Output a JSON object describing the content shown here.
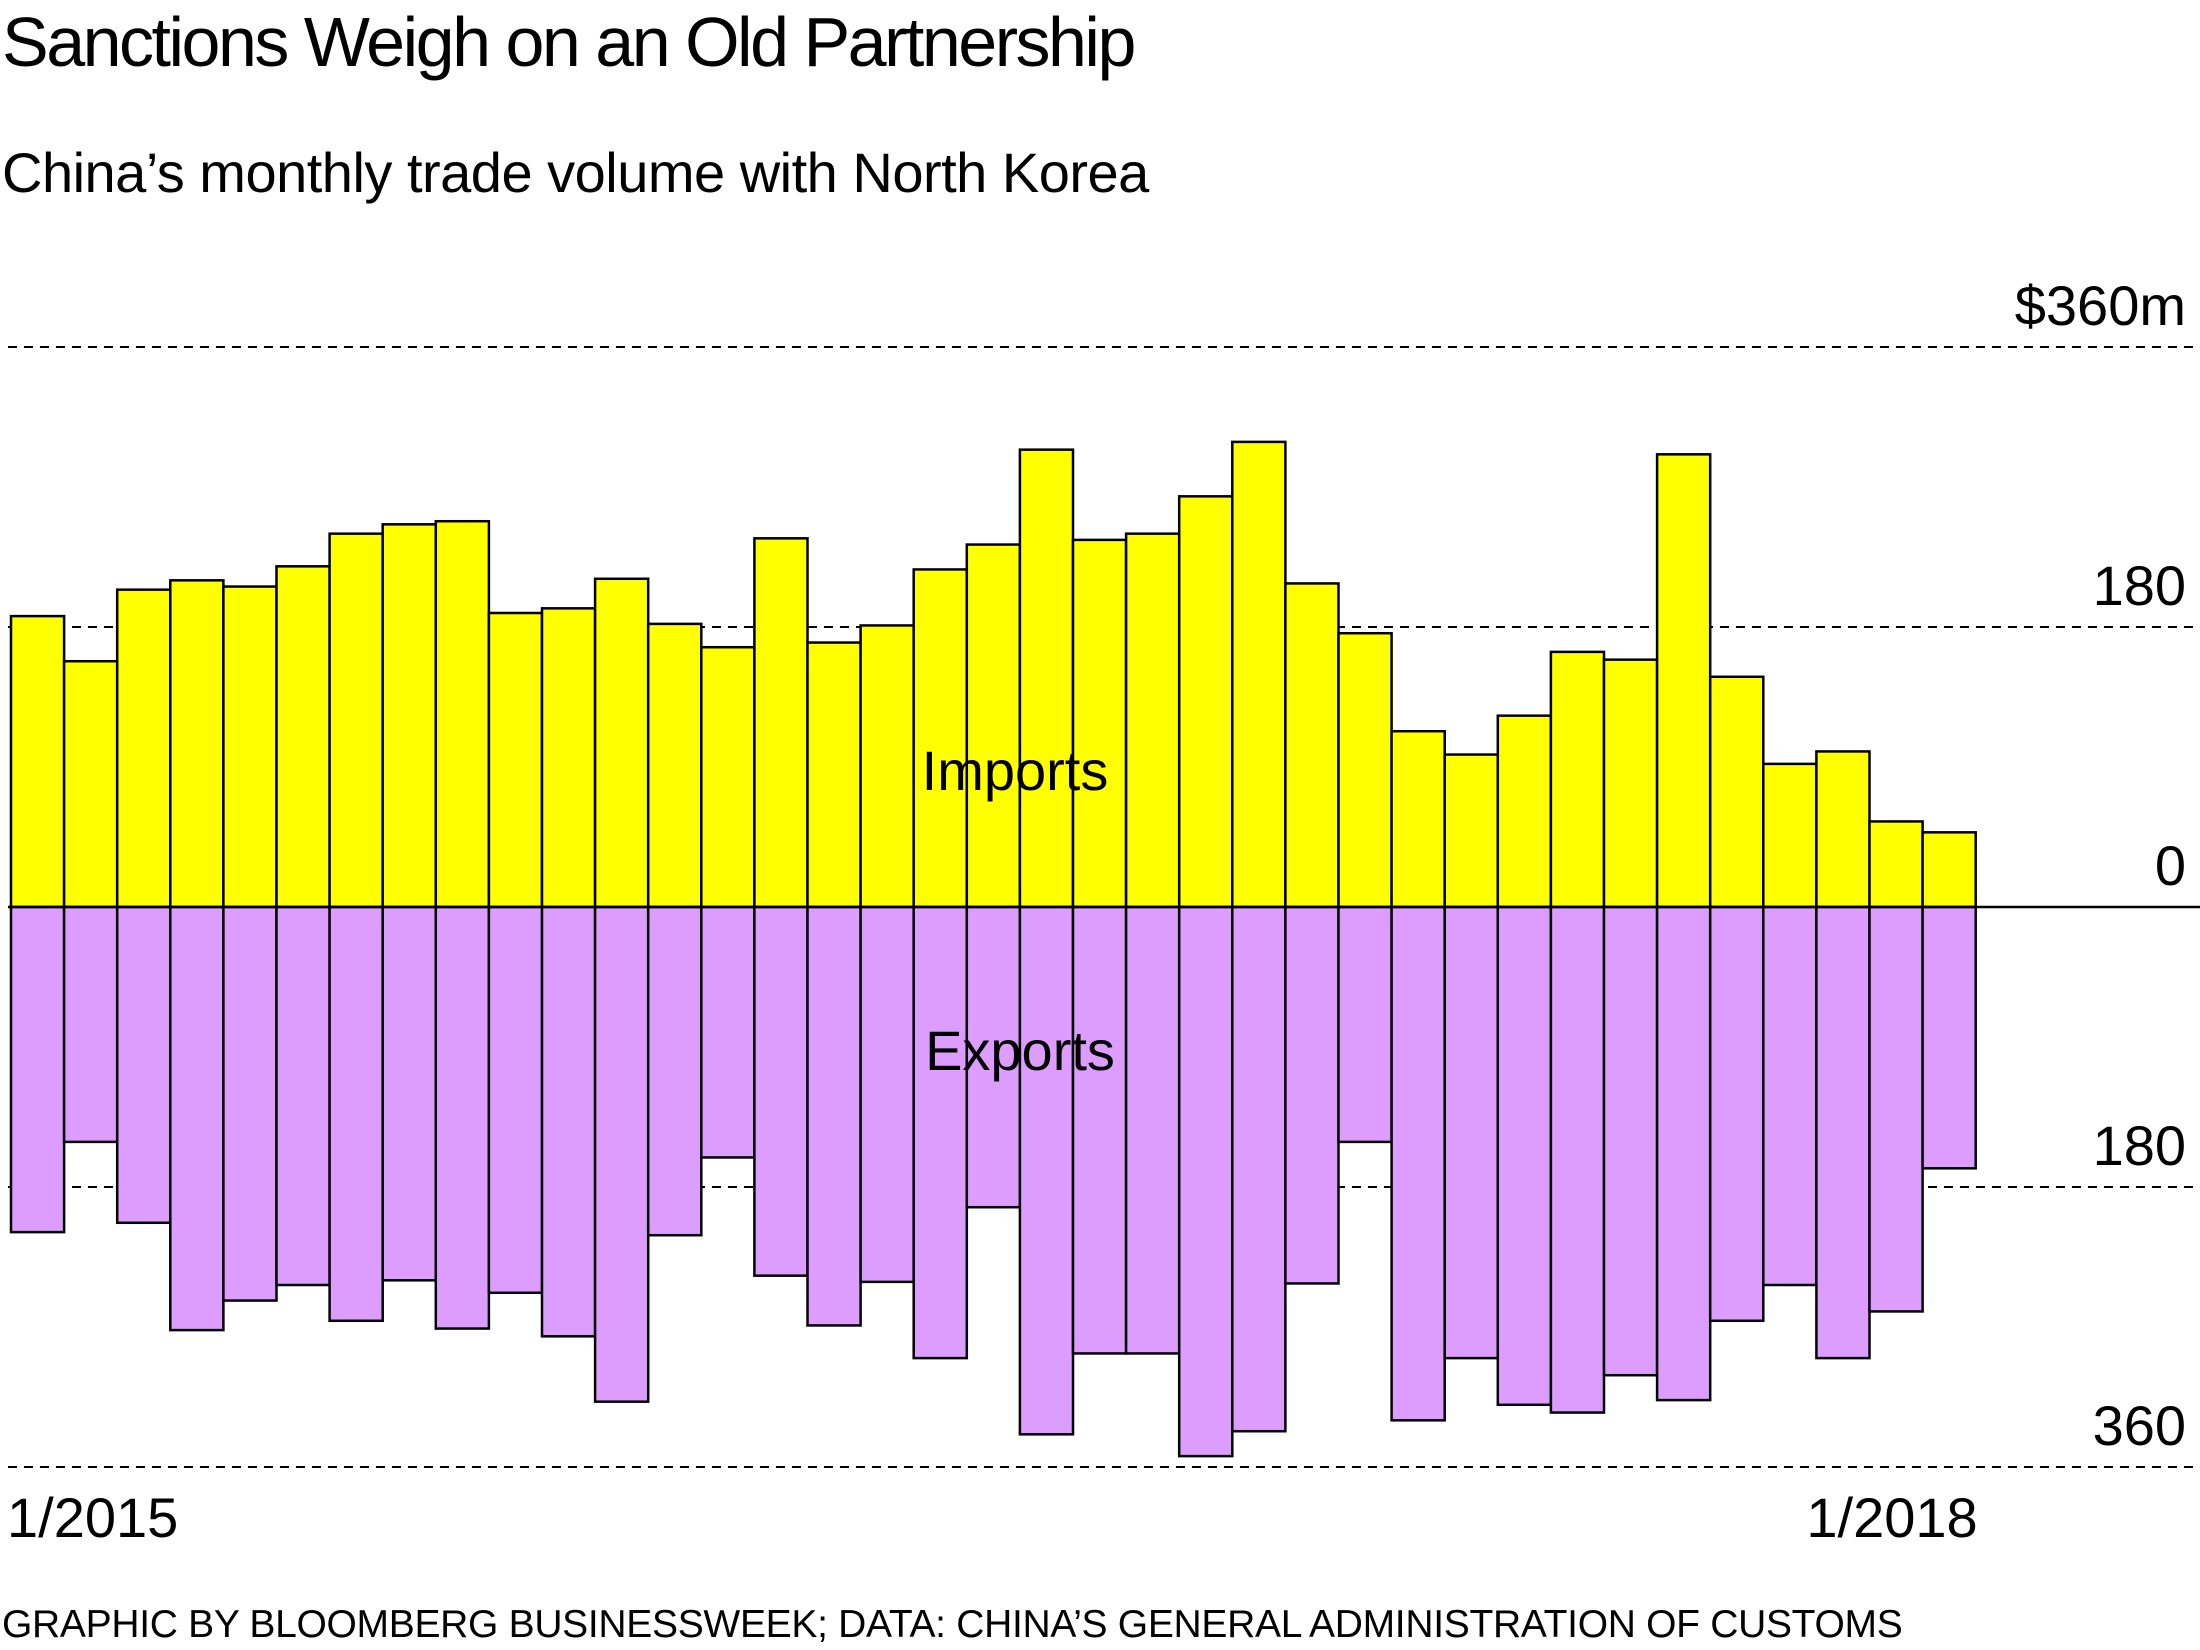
{
  "title": "Sanctions Weigh on an Old Partnership",
  "subtitle": "China’s monthly trade volume with North Korea",
  "source": "GRAPHIC BY BLOOMBERG BUSINESSWEEK; DATA: CHINA’S GENERAL ADMINISTRATION OF CUSTOMS",
  "colors": {
    "imports": "#ffff00",
    "exports": "#dd9dff",
    "stroke": "#000000"
  },
  "chart_data": {
    "type": "bar",
    "title": "Sanctions Weigh on an Old Partnership",
    "subtitle": "China’s monthly trade volume with North Korea",
    "unit": "million USD",
    "ylim_imports": [
      0,
      360
    ],
    "ylim_exports": [
      0,
      360
    ],
    "y_ticks_imports": [
      {
        "value": 360,
        "label": "$360m"
      },
      {
        "value": 180,
        "label": "180"
      },
      {
        "value": 0,
        "label": "0"
      }
    ],
    "y_ticks_exports": [
      {
        "value": 180,
        "label": "180"
      },
      {
        "value": 360,
        "label": "360"
      }
    ],
    "x_tick_labels": [
      {
        "index": 0,
        "label": "1/2015"
      },
      {
        "index": 36,
        "label": "1/2018"
      }
    ],
    "categories": [
      "1/2015",
      "2/2015",
      "3/2015",
      "4/2015",
      "5/2015",
      "6/2015",
      "7/2015",
      "8/2015",
      "9/2015",
      "10/2015",
      "11/2015",
      "12/2015",
      "1/2016",
      "2/2016",
      "3/2016",
      "4/2016",
      "5/2016",
      "6/2016",
      "7/2016",
      "8/2016",
      "9/2016",
      "10/2016",
      "11/2016",
      "12/2016",
      "1/2017",
      "2/2017",
      "3/2017",
      "4/2017",
      "5/2017",
      "6/2017",
      "7/2017",
      "8/2017",
      "9/2017",
      "10/2017",
      "11/2017",
      "12/2017",
      "1/2018"
    ],
    "series": [
      {
        "name": "Imports",
        "direction": "up",
        "values": [
          187,
          158,
          204,
          210,
          206,
          219,
          240,
          246,
          248,
          189,
          192,
          211,
          182,
          167,
          237,
          170,
          181,
          217,
          233,
          294,
          236,
          240,
          264,
          299,
          208,
          176,
          113,
          98,
          123,
          164,
          159,
          291,
          148,
          92,
          100,
          55,
          48
        ]
      },
      {
        "name": "Exports",
        "direction": "down",
        "values": [
          209,
          151,
          203,
          272,
          253,
          243,
          266,
          240,
          271,
          248,
          276,
          318,
          211,
          161,
          237,
          269,
          241,
          290,
          193,
          339,
          287,
          287,
          353,
          337,
          242,
          151,
          330,
          290,
          320,
          325,
          301,
          317,
          266,
          243,
          290,
          260,
          168
        ]
      }
    ],
    "labels": {
      "imports": "Imports",
      "exports": "Exports"
    },
    "grid": "dashed horizontal at 180 and 360 on both sides",
    "legend": "inline labels in center of bars"
  }
}
